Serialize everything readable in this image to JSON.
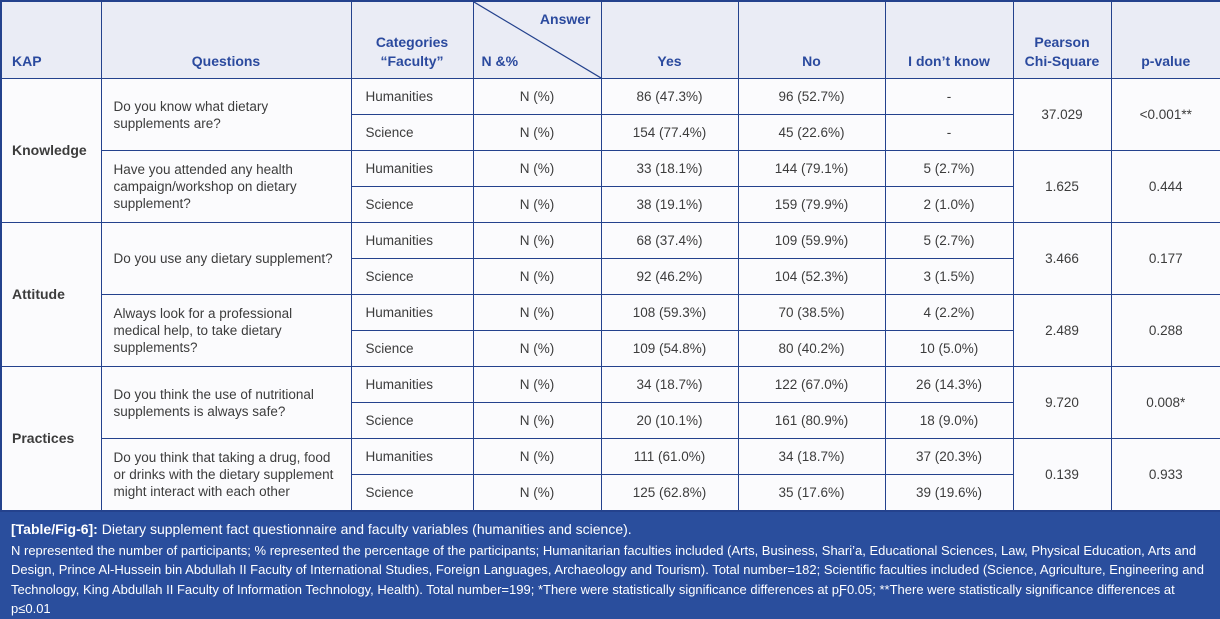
{
  "colors": {
    "border": "#24428d",
    "header_bg": "#eaecf5",
    "header_text": "#2b4a9e",
    "body_bg": "#fbfbfd",
    "body_text": "#3c3c3c",
    "footer_bg": "#2a4e9d",
    "footer_text": "#ffffff"
  },
  "header": {
    "kap": "KAP",
    "questions": "Questions",
    "categories": "Categories\n“Faculty”",
    "answer": "Answer",
    "n_pct": "N &%",
    "yes": "Yes",
    "no": "No",
    "idk": "I don’t know",
    "chi": "Pearson\nChi-Square",
    "p": "p-value"
  },
  "sections": [
    {
      "kap": "Knowledge",
      "questions": [
        {
          "text": "Do you know what dietary supplements are?",
          "chi": "37.029",
          "p": "<0.001**",
          "rows": [
            {
              "category": "Humanities",
              "n": "N (%)",
              "yes": "86 (47.3%)",
              "no": "96 (52.7%)",
              "idk": "-"
            },
            {
              "category": "Science",
              "n": "N (%)",
              "yes": "154 (77.4%)",
              "no": "45 (22.6%)",
              "idk": "-"
            }
          ]
        },
        {
          "text": "Have you attended any health campaign/workshop on dietary supplement?",
          "chi": "1.625",
          "p": "0.444",
          "rows": [
            {
              "category": "Humanities",
              "n": "N (%)",
              "yes": "33 (18.1%)",
              "no": "144 (79.1%)",
              "idk": "5 (2.7%)"
            },
            {
              "category": "Science",
              "n": "N (%)",
              "yes": "38 (19.1%)",
              "no": "159 (79.9%)",
              "idk": "2 (1.0%)"
            }
          ]
        }
      ]
    },
    {
      "kap": "Attitude",
      "questions": [
        {
          "text": "Do you use any dietary supplement?",
          "chi": "3.466",
          "p": "0.177",
          "rows": [
            {
              "category": "Humanities",
              "n": "N (%)",
              "yes": "68 (37.4%)",
              "no": "109 (59.9%)",
              "idk": "5 (2.7%)"
            },
            {
              "category": "Science",
              "n": "N (%)",
              "yes": "92 (46.2%)",
              "no": "104 (52.3%)",
              "idk": "3 (1.5%)"
            }
          ]
        },
        {
          "text": "Always look for a professional medical help, to take dietary supplements?",
          "chi": "2.489",
          "p": "0.288",
          "rows": [
            {
              "category": "Humanities",
              "n": "N (%)",
              "yes": "108 (59.3%)",
              "no": "70 (38.5%)",
              "idk": "4 (2.2%)"
            },
            {
              "category": "Science",
              "n": "N (%)",
              "yes": "109 (54.8%)",
              "no": "80 (40.2%)",
              "idk": "10 (5.0%)"
            }
          ]
        }
      ]
    },
    {
      "kap": "Practices",
      "questions": [
        {
          "text": "Do you think the use of nutritional supplements is always safe?",
          "chi": "9.720",
          "p": "0.008*",
          "rows": [
            {
              "category": "Humanities",
              "n": "N (%)",
              "yes": "34 (18.7%)",
              "no": "122 (67.0%)",
              "idk": "26 (14.3%)"
            },
            {
              "category": "Science",
              "n": "N (%)",
              "yes": "20 (10.1%)",
              "no": "161 (80.9%)",
              "idk": "18 (9.0%)"
            }
          ]
        },
        {
          "text": "Do you think that taking a drug, food or drinks with the dietary supplement might interact with each other",
          "chi": "0.139",
          "p": "0.933",
          "rows": [
            {
              "category": "Humanities",
              "n": "N (%)",
              "yes": "111 (61.0%)",
              "no": "34 (18.7%)",
              "idk": "37 (20.3%)"
            },
            {
              "category": "Science",
              "n": "N (%)",
              "yes": "125 (62.8%)",
              "no": "35 (17.6%)",
              "idk": "39 (19.6%)"
            }
          ]
        }
      ]
    }
  ],
  "footer": {
    "title_label": "[Table/Fig-6]:",
    "title_text": "Dietary supplement fact questionnaire and faculty variables (humanities and science).",
    "note": "N represented the number of participants; % represented the percentage of the participants; Humanitarian faculties included (Arts, Business, Shari’a, Educational Sciences, Law, Physical Education, Arts and Design, Prince Al-Hussein bin Abdullah II Faculty of International Studies, Foreign Languages, Archaeology and Tourism). Total number=182; Scientific faculties included (Science, Agriculture, Engineering and Technology, King Abdullah II Faculty of Information Technology, Health). Total number=199; *There were statistically significance differences at pƑ0.05; **There were statistically significance differences at p≤0.01"
  }
}
